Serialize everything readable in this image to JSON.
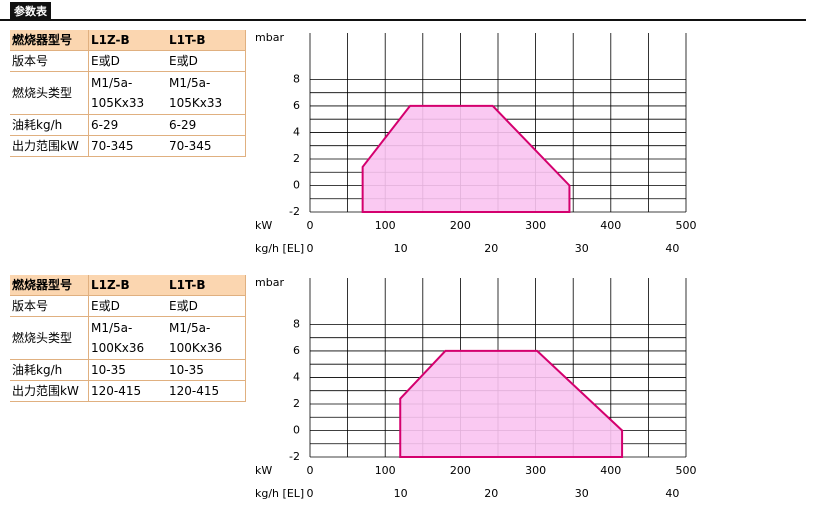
{
  "header": {
    "title": "参数表"
  },
  "tables": [
    {
      "header": [
        "燃烧器型号",
        "L1Z-B",
        "L1T-B"
      ],
      "rows": [
        [
          "版本号",
          "E或D",
          "E或D"
        ],
        [
          "燃烧头类型",
          [
            "M1/5a-",
            "105Kx33"
          ],
          [
            "M1/5a-",
            "105Kx33"
          ]
        ],
        [
          "油耗kg/h",
          "6-29",
          "6-29"
        ],
        [
          "出力范围kW",
          "70-345",
          "70-345"
        ]
      ]
    },
    {
      "header": [
        "燃烧器型号",
        "L1Z-B",
        "L1T-B"
      ],
      "rows": [
        [
          "版本号",
          "E或D",
          "E或D"
        ],
        [
          "燃烧头类型",
          [
            "M1/5a-",
            "100Kx36"
          ],
          [
            "M1/5a-",
            "100Kx36"
          ]
        ],
        [
          "油耗kg/h",
          "10-35",
          "10-35"
        ],
        [
          "出力范围kW",
          "120-415",
          "120-415"
        ]
      ]
    }
  ],
  "chart_data": [
    {
      "type": "area",
      "y_label": "mbar",
      "x_label": "kW",
      "x2_label": "kg/h [EL]",
      "x": [
        70,
        70,
        133,
        243,
        345,
        345
      ],
      "y": [
        -2,
        1.4,
        6,
        6,
        0,
        -2
      ],
      "color": "#f9c3f1",
      "edge_color": "#d4006e",
      "xlim": [
        0,
        500
      ],
      "xticks": [
        0,
        100,
        200,
        300,
        400,
        500
      ],
      "xgrid": [
        0,
        50,
        100,
        150,
        200,
        250,
        300,
        350,
        400,
        450,
        500
      ],
      "x2lim": [
        0,
        41.5
      ],
      "x2ticks": [
        0,
        10,
        20,
        30,
        40
      ],
      "ylim": [
        -2,
        11.5
      ],
      "yticks": [
        -2,
        0,
        2,
        4,
        6,
        8
      ],
      "ygrid": [
        -2,
        -1,
        0,
        1,
        2,
        3,
        4,
        5,
        6,
        7,
        8
      ]
    },
    {
      "type": "area",
      "y_label": "mbar",
      "x_label": "kW",
      "x2_label": "kg/h [EL]",
      "x": [
        120,
        120,
        180,
        302,
        415,
        415
      ],
      "y": [
        -2,
        2.4,
        6,
        6,
        0,
        -2
      ],
      "color": "#f9c3f1",
      "edge_color": "#d4006e",
      "xlim": [
        0,
        500
      ],
      "xticks": [
        0,
        100,
        200,
        300,
        400,
        500
      ],
      "xgrid": [
        0,
        50,
        100,
        150,
        200,
        250,
        300,
        350,
        400,
        450,
        500
      ],
      "x2lim": [
        0,
        41.5
      ],
      "x2ticks": [
        0,
        10,
        20,
        30,
        40
      ],
      "ylim": [
        -2,
        11.5
      ],
      "yticks": [
        -2,
        0,
        2,
        4,
        6,
        8
      ],
      "ygrid": [
        -2,
        -1,
        0,
        1,
        2,
        3,
        4,
        5,
        6,
        7,
        8
      ]
    }
  ]
}
